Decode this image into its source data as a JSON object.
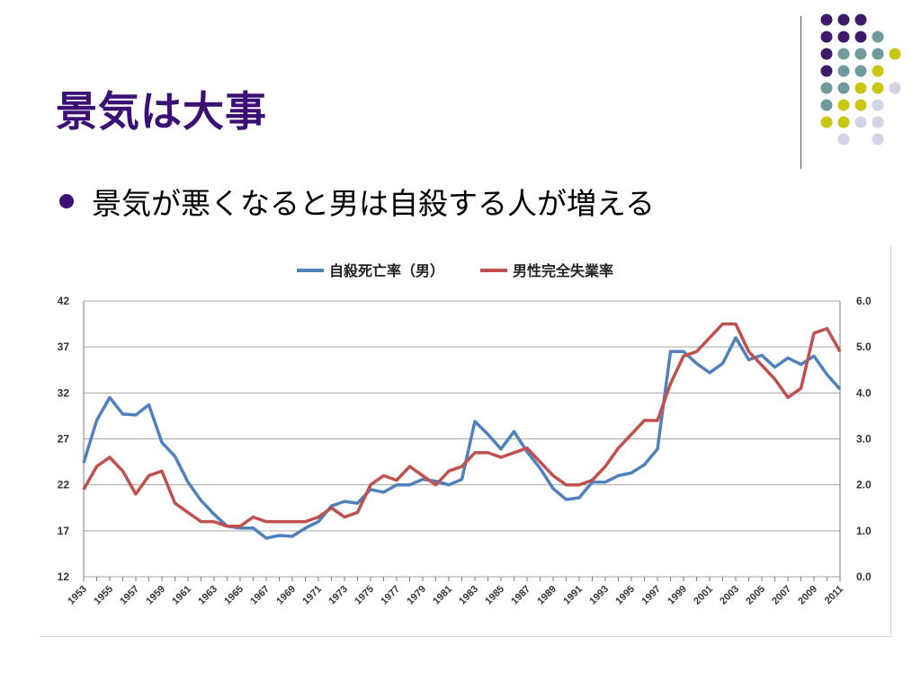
{
  "slide": {
    "title": "景気は大事",
    "bullet": "景気が悪くなると男は自殺する人が増える"
  },
  "decoration": {
    "palette": {
      "purple": "#3f1a6b",
      "teal": "#6f9b9c",
      "yellow": "#c9c714",
      "lavender": "#d3d3e8"
    }
  },
  "chart_data": {
    "type": "line",
    "legend_position": "top",
    "grid": true,
    "x": [
      1953,
      1954,
      1955,
      1956,
      1957,
      1958,
      1959,
      1960,
      1961,
      1962,
      1963,
      1964,
      1965,
      1966,
      1967,
      1968,
      1969,
      1970,
      1971,
      1972,
      1973,
      1974,
      1975,
      1976,
      1977,
      1978,
      1979,
      1980,
      1981,
      1982,
      1983,
      1984,
      1985,
      1986,
      1987,
      1988,
      1989,
      1990,
      1991,
      1992,
      1993,
      1994,
      1995,
      1996,
      1997,
      1998,
      1999,
      2000,
      2001,
      2002,
      2003,
      2004,
      2005,
      2006,
      2007,
      2008,
      2009,
      2010,
      2011
    ],
    "x_tick_labels": [
      "1953",
      "1955",
      "1957",
      "1959",
      "1961",
      "1963",
      "1965",
      "1967",
      "1969",
      "1971",
      "1973",
      "1975",
      "1977",
      "1979",
      "1981",
      "1983",
      "1985",
      "1987",
      "1989",
      "1991",
      "1993",
      "1995",
      "1997",
      "1999",
      "2001",
      "2003",
      "2005",
      "2007",
      "2009",
      "2011"
    ],
    "y_left": {
      "range": [
        12,
        42
      ],
      "ticks": [
        "12",
        "17",
        "22",
        "27",
        "32",
        "37",
        "42"
      ]
    },
    "y_right": {
      "range": [
        0.0,
        6.0
      ],
      "ticks": [
        "0.0",
        "1.0",
        "2.0",
        "3.0",
        "4.0",
        "5.0",
        "6.0"
      ]
    },
    "series": [
      {
        "name": "自殺死亡率（男）",
        "axis": "left",
        "color": "#4f81bd",
        "values": [
          24.4,
          29.0,
          31.5,
          29.7,
          29.6,
          30.7,
          26.6,
          25.1,
          22.3,
          20.3,
          18.8,
          17.5,
          17.3,
          17.3,
          16.2,
          16.5,
          16.4,
          17.3,
          18.0,
          19.7,
          20.2,
          20.0,
          21.5,
          21.2,
          22.0,
          22.0,
          22.6,
          22.4,
          22.0,
          22.6,
          28.9,
          27.5,
          25.9,
          27.8,
          25.6,
          23.8,
          21.6,
          20.4,
          20.6,
          22.3,
          22.3,
          23.0,
          23.3,
          24.2,
          25.9,
          36.5,
          36.5,
          35.2,
          34.2,
          35.2,
          38.0,
          35.6,
          36.1,
          34.8,
          35.8,
          35.1,
          36.0,
          34.0,
          32.4
        ]
      },
      {
        "name": "男性完全失業率",
        "axis": "right",
        "color": "#c0504d",
        "values": [
          1.9,
          2.4,
          2.6,
          2.3,
          1.8,
          2.2,
          2.3,
          1.6,
          1.4,
          1.2,
          1.2,
          1.1,
          1.1,
          1.3,
          1.2,
          1.2,
          1.2,
          1.2,
          1.3,
          1.5,
          1.3,
          1.4,
          2.0,
          2.2,
          2.1,
          2.4,
          2.2,
          2.0,
          2.3,
          2.4,
          2.7,
          2.7,
          2.6,
          2.7,
          2.8,
          2.5,
          2.2,
          2.0,
          2.0,
          2.1,
          2.4,
          2.8,
          3.1,
          3.4,
          3.4,
          4.2,
          4.8,
          4.9,
          5.2,
          5.5,
          5.5,
          4.9,
          4.6,
          4.3,
          3.9,
          4.1,
          5.3,
          5.4,
          4.9
        ]
      }
    ]
  }
}
